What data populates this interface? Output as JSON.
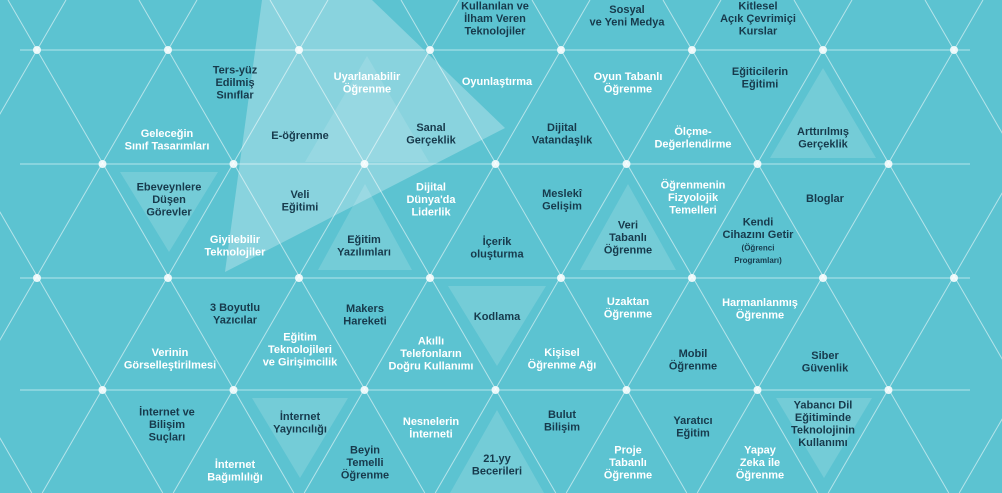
{
  "labels": [
    [
      "Kullanılan ve",
      "İlham Veren",
      "Teknolojiler"
    ],
    [
      "Sosyal",
      "ve Yeni Medya"
    ],
    [
      "Kitlesel",
      "Açık Çevrimiçi",
      "Kurslar"
    ],
    [
      "Ters-yüz",
      "Edilmiş",
      "Sınıflar"
    ],
    [
      "Uyarlanabilir",
      "Öğrenme"
    ],
    [
      "Oyunlaştırma"
    ],
    [
      "Oyun Tabanlı",
      "Öğrenme"
    ],
    [
      "Eğiticilerin",
      "Eğitimi"
    ],
    [
      "Geleceğin",
      "Sınıf Tasarımları"
    ],
    [
      "E-öğrenme"
    ],
    [
      "Sanal",
      "Gerçeklik"
    ],
    [
      "Dijital",
      "Vatandaşlık"
    ],
    [
      "Ölçme-",
      "Değerlendirme"
    ],
    [
      "Arttırılmış",
      "Gerçeklik"
    ],
    [
      "Ebeveynlere",
      "Düşen",
      "Görevler"
    ],
    [
      "Veli",
      "Eğitimi"
    ],
    [
      "Dijital",
      "Dünya'da",
      "Liderlik"
    ],
    [
      "Meslekî",
      "Gelişim"
    ],
    [
      "Öğrenmenin",
      "Fizyolojik",
      "Temelleri"
    ],
    [
      "Bloglar"
    ],
    [
      "Giyilebilir",
      "Teknolojiler"
    ],
    [
      "Eğitim",
      "Yazılımları"
    ],
    [
      "İçerik",
      "oluşturma"
    ],
    [
      "Veri",
      "Tabanlı",
      "Öğrenme"
    ],
    [
      "Kendi",
      "Cihazını Getir",
      "(Öğrenci",
      "Programları)"
    ],
    [
      "3 Boyutlu",
      "Yazıcılar"
    ],
    [
      "Makers",
      "Hareketi"
    ],
    [
      "Kodlama"
    ],
    [
      "Uzaktan",
      "Öğrenme"
    ],
    [
      "Harmanlanmış",
      "Öğrenme"
    ],
    [
      "Verinin",
      "Görselleştirilmesi"
    ],
    [
      "Eğitim",
      "Teknolojileri",
      "ve Girişimcilik"
    ],
    [
      "Akıllı",
      "Telefonların",
      "Doğru Kullanımı"
    ],
    [
      "Kişisel",
      "Öğrenme Ağı"
    ],
    [
      "Mobil",
      "Öğrenme"
    ],
    [
      "Siber",
      "Güvenlik"
    ],
    [
      "İnternet ve",
      "Bilişim",
      "Suçları"
    ],
    [
      "İnternet",
      "Yayıncılığı"
    ],
    [
      "Nesnelerin",
      "İnterneti"
    ],
    [
      "Bulut",
      "Bilişim"
    ],
    [
      "Yaratıcı",
      "Eğitim"
    ],
    [
      "Yabancı Dil",
      "Eğitiminde",
      "Teknolojinin",
      "Kullanımı"
    ],
    [
      "İnternet",
      "Bağımlılığı"
    ],
    [
      "Beyin",
      "Temelli",
      "Öğrenme"
    ],
    [
      "21.yy",
      "Becerileri"
    ],
    [
      "Proje",
      "Tabanlı",
      "Öğrenme"
    ],
    [
      "Yapay",
      "Zeka ile",
      "Öğrenme"
    ]
  ]
}
